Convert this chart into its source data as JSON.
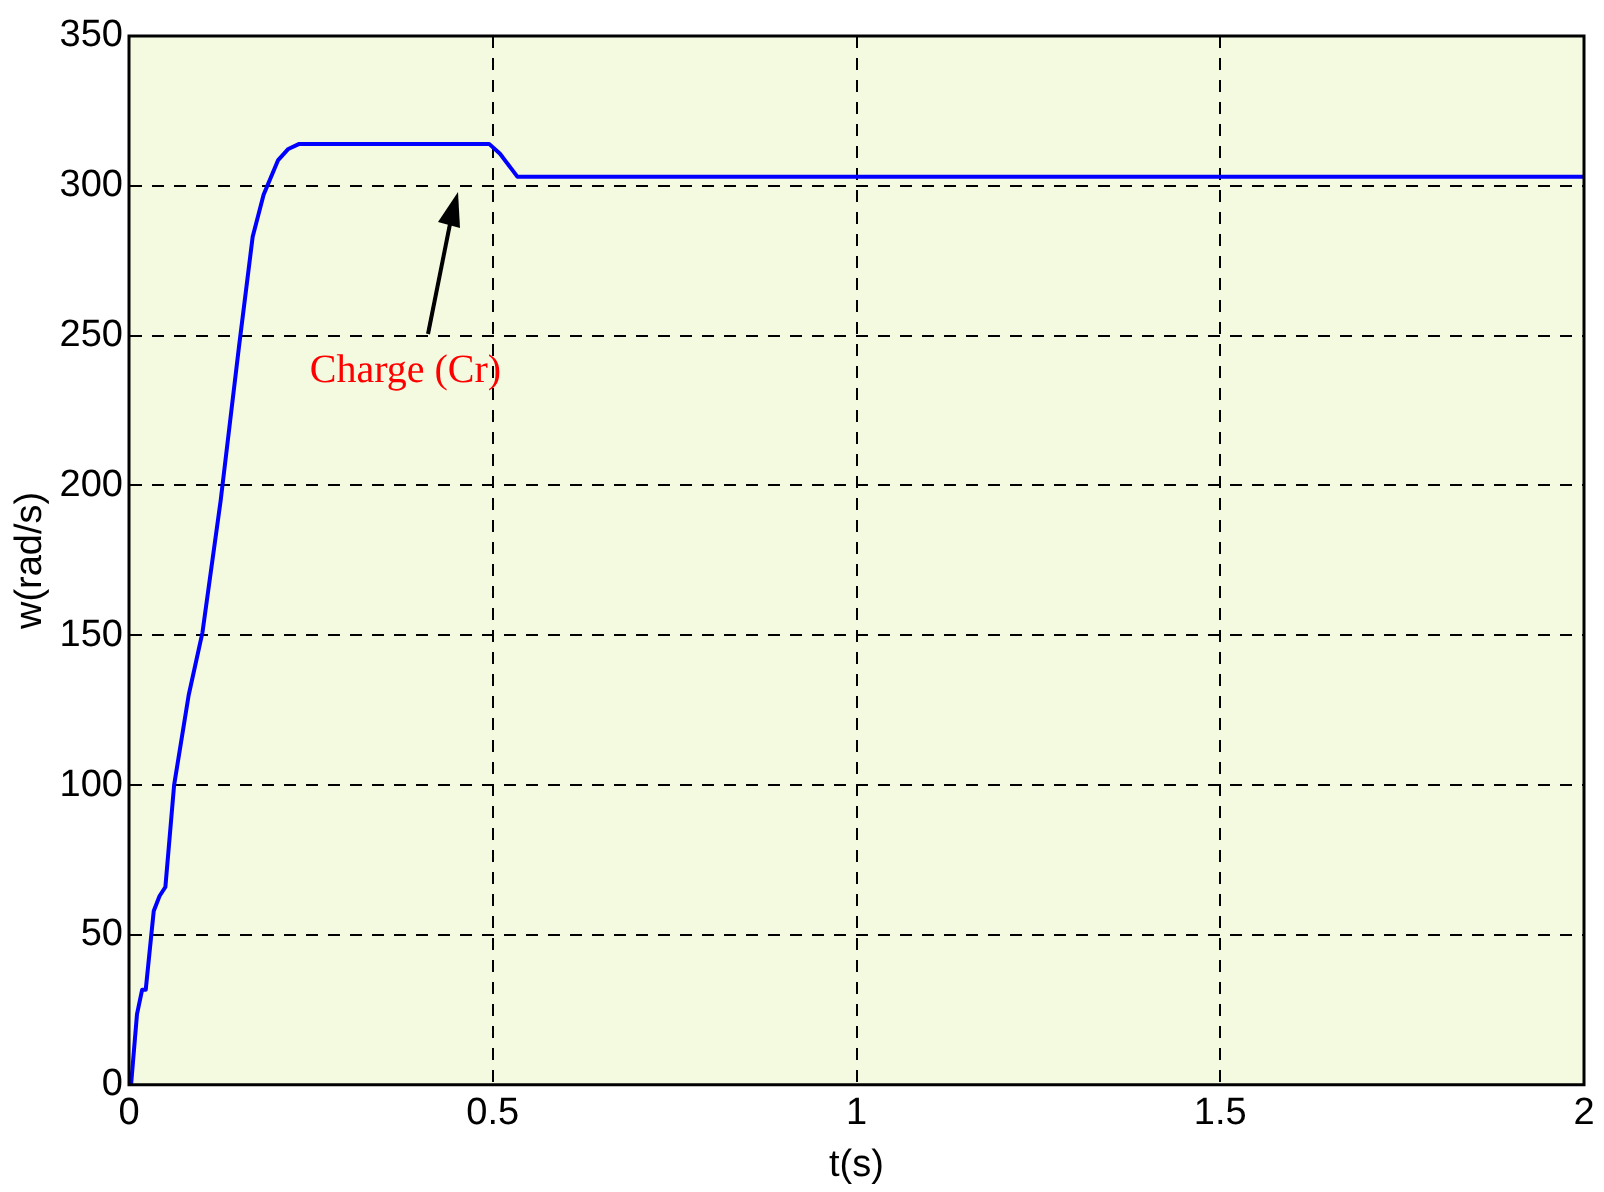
{
  "chart_data": {
    "type": "line",
    "xlabel": "t(s)",
    "ylabel": "w(rad/s)",
    "xlim": [
      0,
      2
    ],
    "xticks": [
      0,
      0.5,
      1,
      1.5,
      2
    ],
    "ylim": [
      0,
      350
    ],
    "yticks": [
      0,
      50,
      100,
      150,
      200,
      250,
      300,
      350
    ],
    "grid": true,
    "legend": false,
    "marker": "none",
    "line_style": "solid",
    "series": [
      {
        "color": "#0000ff",
        "x": [
          0.003,
          0.011,
          0.018,
          0.023,
          0.034,
          0.042,
          0.05,
          0.062,
          0.082,
          0.101,
          0.126,
          0.151,
          0.17,
          0.185,
          0.205,
          0.219,
          0.234,
          0.495,
          0.51,
          0.534,
          2
        ],
        "values": [
          0.5,
          23.6,
          31.7,
          31.7,
          58,
          63,
          66,
          100,
          130,
          151,
          195,
          246,
          283,
          297,
          308.6,
          312.3,
          314,
          314,
          310.7,
          303,
          303
        ]
      }
    ],
    "annotations": [
      "Charge (Cr)"
    ]
  }
}
